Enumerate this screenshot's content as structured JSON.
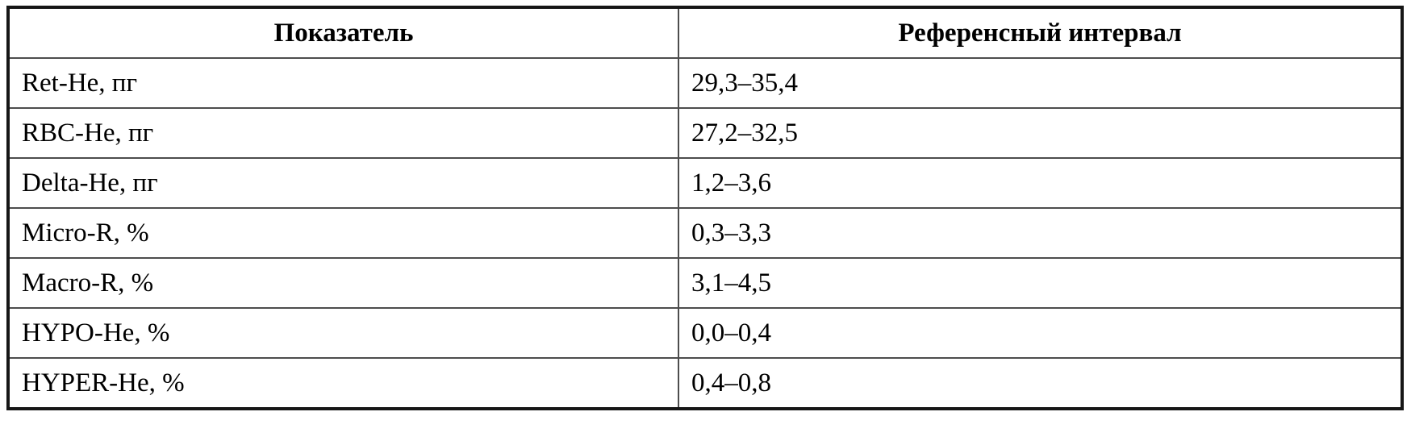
{
  "table": {
    "columns": [
      {
        "label": "Показатель"
      },
      {
        "label": "Референсный интервал"
      }
    ],
    "rows": [
      {
        "indicator": "Ret-He, пг",
        "interval": "29,3–35,4"
      },
      {
        "indicator": "RBC-He, пг",
        "interval": "27,2–32,5"
      },
      {
        "indicator": "Delta-He, пг",
        "interval": "1,2–3,6"
      },
      {
        "indicator": "Micro-R, %",
        "interval": "0,3–3,3"
      },
      {
        "indicator": "Macro-R, %",
        "interval": "3,1–4,5"
      },
      {
        "indicator": "HYPO-He, %",
        "interval": "0,0–0,4"
      },
      {
        "indicator": "HYPER-He, %",
        "interval": "0,4–0,8"
      }
    ],
    "colors": {
      "text": "#000000",
      "border_outer": "#161616",
      "border_inner": "#4d4d4d",
      "background": "#ffffff"
    }
  }
}
